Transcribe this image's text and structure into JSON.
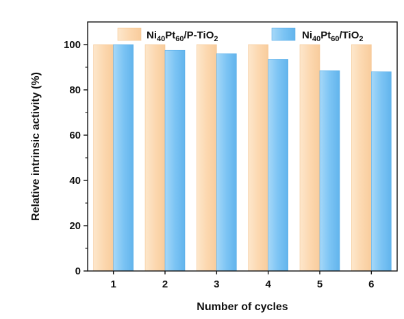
{
  "chart_data": {
    "type": "bar",
    "xlabel": "Number of cycles",
    "ylabel": "Relative intrinsic activity (%)",
    "categories": [
      "1",
      "2",
      "3",
      "4",
      "5",
      "6"
    ],
    "ylim": [
      0,
      110
    ],
    "yticks": [
      "0",
      "20",
      "40",
      "60",
      "80",
      "100"
    ],
    "legend_position": "top",
    "series": [
      {
        "name_parts": [
          [
            "Ni",
            "n"
          ],
          [
            "40",
            "sub"
          ],
          [
            "Pt",
            "n"
          ],
          [
            "60",
            "sub"
          ],
          [
            "/P-TiO",
            "n"
          ],
          [
            "2",
            "sub"
          ]
        ],
        "values": [
          100,
          100,
          100,
          100,
          100,
          100
        ],
        "color": "#fcd8b0",
        "edge": "#f6c590"
      },
      {
        "name_parts": [
          [
            "Ni",
            "n"
          ],
          [
            "40",
            "sub"
          ],
          [
            "Pt",
            "n"
          ],
          [
            "60",
            "sub"
          ],
          [
            "/TiO",
            "n"
          ],
          [
            "2",
            "sub"
          ]
        ],
        "values": [
          100,
          97.5,
          96,
          93.5,
          88.5,
          88
        ],
        "color": "#7cc4f4",
        "edge": "#5aaee8"
      }
    ]
  }
}
